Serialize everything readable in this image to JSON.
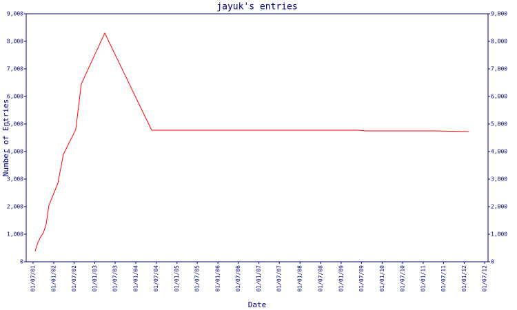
{
  "chart_data": {
    "type": "line",
    "title": "jayuk's entries",
    "x_label": "Date",
    "y_label": "Number of Entries",
    "x": [
      "2001-07-19",
      "2001-08-13",
      "2001-09-06",
      "2001-10-01",
      "2001-10-26",
      "2001-11-19",
      "2002-02-07",
      "2002-03-28",
      "2002-07-16",
      "2002-09-03",
      "2003-03-31",
      "2004-05-21",
      "2009-06-04",
      "2009-08-05",
      "2011-04-09",
      "2012-02-10"
    ],
    "values": [
      375,
      700,
      900,
      1050,
      1375,
      2050,
      2850,
      3900,
      4800,
      6450,
      8300,
      4775,
      4775,
      4750,
      4750,
      4725
    ],
    "color": "#ff0000",
    "xlim": [
      "2001-05-01",
      "2012-07-31"
    ],
    "xticks": [
      {
        "value": "2001-07-01",
        "label": "01/07/01"
      },
      {
        "value": "2002-01-01",
        "label": "01/01/02"
      },
      {
        "value": "2002-07-01",
        "label": "01/07/02"
      },
      {
        "value": "2003-01-01",
        "label": "01/01/03"
      },
      {
        "value": "2003-07-01",
        "label": "01/07/03"
      },
      {
        "value": "2004-01-01",
        "label": "01/01/04"
      },
      {
        "value": "2004-07-01",
        "label": "01/07/04"
      },
      {
        "value": "2005-01-01",
        "label": "01/01/05"
      },
      {
        "value": "2005-07-01",
        "label": "01/07/05"
      },
      {
        "value": "2006-01-01",
        "label": "01/01/06"
      },
      {
        "value": "2006-07-01",
        "label": "01/07/06"
      },
      {
        "value": "2007-01-01",
        "label": "01/01/07"
      },
      {
        "value": "2007-07-01",
        "label": "01/07/07"
      },
      {
        "value": "2008-01-01",
        "label": "01/01/08"
      },
      {
        "value": "2008-07-01",
        "label": "01/07/08"
      },
      {
        "value": "2009-01-01",
        "label": "01/01/09"
      },
      {
        "value": "2009-07-01",
        "label": "01/07/09"
      },
      {
        "value": "2010-01-01",
        "label": "01/01/10"
      },
      {
        "value": "2010-07-01",
        "label": "01/07/10"
      },
      {
        "value": "2011-01-01",
        "label": "01/01/11"
      },
      {
        "value": "2011-07-01",
        "label": "01/07/11"
      },
      {
        "value": "2012-01-01",
        "label": "01/01/12"
      },
      {
        "value": "2012-07-01",
        "label": "01/07/12"
      }
    ],
    "ylim": [
      0,
      9000
    ],
    "yticks": [
      0,
      {
        "value": 1000,
        "label": "1,000"
      },
      {
        "value": 2000,
        "label": "2,000"
      },
      {
        "value": 3000,
        "label": "3,000"
      },
      {
        "value": 4000,
        "label": "4,000"
      },
      {
        "value": 5000,
        "label": "5,000"
      },
      {
        "value": 6000,
        "label": "6,000"
      },
      {
        "value": 7000,
        "label": "7,000"
      },
      {
        "value": 8000,
        "label": "8,000"
      },
      {
        "value": 9000,
        "label": "9,000"
      }
    ]
  }
}
